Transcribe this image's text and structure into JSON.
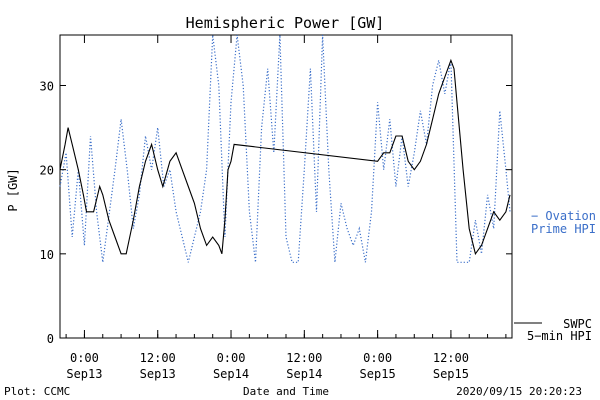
{
  "chart_data": {
    "type": "line",
    "title": "Hemispheric Power [GW]",
    "xlabel": "Date and Time",
    "ylabel": "P [GW]",
    "ylim": [
      0,
      36
    ],
    "xlim": [
      "2020-09-12 20:00",
      "2020-09-15 22:00"
    ],
    "yticks": [
      0,
      10,
      20,
      30
    ],
    "xticks": [
      {
        "t": "2020-09-13 00:00",
        "time": "0:00",
        "date": "Sep13"
      },
      {
        "t": "2020-09-13 12:00",
        "time": "12:00",
        "date": "Sep13"
      },
      {
        "t": "2020-09-14 00:00",
        "time": "0:00",
        "date": "Sep14"
      },
      {
        "t": "2020-09-14 12:00",
        "time": "12:00",
        "date": "Sep14"
      },
      {
        "t": "2020-09-15 00:00",
        "time": "0:00",
        "date": "Sep15"
      },
      {
        "t": "2020-09-15 12:00",
        "time": "12:00",
        "date": "Sep15"
      }
    ],
    "footer_left": "Plot: CCMC",
    "footer_right": "2020/09/15 20:20:23",
    "series": [
      {
        "name": "SWPC 5-min HPI",
        "legend_lines": [
          "SWPC",
          "5−min HPI"
        ],
        "color": "#000000",
        "style": "solid",
        "points": [
          [
            "2020-09-12 20:00",
            20
          ],
          [
            "2020-09-12 20:50",
            23
          ],
          [
            "2020-09-12 21:20",
            25
          ],
          [
            "2020-09-12 22:00",
            23
          ],
          [
            "2020-09-12 23:00",
            20
          ],
          [
            "2020-09-12 23:50",
            17
          ],
          [
            "2020-09-13 00:20",
            15
          ],
          [
            "2020-09-13 01:30",
            15
          ],
          [
            "2020-09-13 02:30",
            18
          ],
          [
            "2020-09-13 03:00",
            17
          ],
          [
            "2020-09-13 04:00",
            14
          ],
          [
            "2020-09-13 05:00",
            12
          ],
          [
            "2020-09-13 06:00",
            10
          ],
          [
            "2020-09-13 06:50",
            10
          ],
          [
            "2020-09-13 08:00",
            14
          ],
          [
            "2020-09-13 09:00",
            18
          ],
          [
            "2020-09-13 10:00",
            21
          ],
          [
            "2020-09-13 11:00",
            23
          ],
          [
            "2020-09-13 12:00",
            20
          ],
          [
            "2020-09-13 12:50",
            18
          ],
          [
            "2020-09-13 14:00",
            21
          ],
          [
            "2020-09-13 15:00",
            22
          ],
          [
            "2020-09-13 16:00",
            20
          ],
          [
            "2020-09-13 17:00",
            18
          ],
          [
            "2020-09-13 18:00",
            16
          ],
          [
            "2020-09-13 19:00",
            13
          ],
          [
            "2020-09-13 20:00",
            11
          ],
          [
            "2020-09-13 21:00",
            12
          ],
          [
            "2020-09-13 22:00",
            11
          ],
          [
            "2020-09-13 22:30",
            10
          ],
          [
            "2020-09-13 23:00",
            14
          ],
          [
            "2020-09-13 23:30",
            20
          ],
          [
            "2020-09-14 00:00",
            21
          ],
          [
            "2020-09-14 00:30",
            23
          ],
          [
            "2020-09-15 00:00",
            21
          ],
          [
            "2020-09-15 01:00",
            22
          ],
          [
            "2020-09-15 02:00",
            22
          ],
          [
            "2020-09-15 03:00",
            24
          ],
          [
            "2020-09-15 04:00",
            24
          ],
          [
            "2020-09-15 05:00",
            21
          ],
          [
            "2020-09-15 06:00",
            20
          ],
          [
            "2020-09-15 07:00",
            21
          ],
          [
            "2020-09-15 08:00",
            23
          ],
          [
            "2020-09-15 09:00",
            26
          ],
          [
            "2020-09-15 10:00",
            29
          ],
          [
            "2020-09-15 11:00",
            31
          ],
          [
            "2020-09-15 12:00",
            33
          ],
          [
            "2020-09-15 12:30",
            32
          ],
          [
            "2020-09-15 13:00",
            28
          ],
          [
            "2020-09-15 14:00",
            20
          ],
          [
            "2020-09-15 15:00",
            13
          ],
          [
            "2020-09-15 16:00",
            10
          ],
          [
            "2020-09-15 17:00",
            11
          ],
          [
            "2020-09-15 18:00",
            13
          ],
          [
            "2020-09-15 19:00",
            15
          ],
          [
            "2020-09-15 20:00",
            14
          ],
          [
            "2020-09-15 21:00",
            15
          ],
          [
            "2020-09-15 21:40",
            17
          ]
        ]
      },
      {
        "name": "Ovation Prime HPI",
        "legend_lines": [
          "− Ovation",
          "Prime HPI"
        ],
        "color": "#3b6fc9",
        "style": "dotted",
        "points": [
          [
            "2020-09-12 20:00",
            18
          ],
          [
            "2020-09-12 21:00",
            22
          ],
          [
            "2020-09-12 22:00",
            12
          ],
          [
            "2020-09-12 23:00",
            20
          ],
          [
            "2020-09-13 00:00",
            11
          ],
          [
            "2020-09-13 01:00",
            24
          ],
          [
            "2020-09-13 02:00",
            15
          ],
          [
            "2020-09-13 03:00",
            9
          ],
          [
            "2020-09-13 05:00",
            20
          ],
          [
            "2020-09-13 06:00",
            26
          ],
          [
            "2020-09-13 07:00",
            20
          ],
          [
            "2020-09-13 08:00",
            13
          ],
          [
            "2020-09-13 09:00",
            17
          ],
          [
            "2020-09-13 10:00",
            24
          ],
          [
            "2020-09-13 11:00",
            20
          ],
          [
            "2020-09-13 12:00",
            25
          ],
          [
            "2020-09-13 13:00",
            18
          ],
          [
            "2020-09-13 14:00",
            20
          ],
          [
            "2020-09-13 15:00",
            15
          ],
          [
            "2020-09-13 16:00",
            12
          ],
          [
            "2020-09-13 17:00",
            9
          ],
          [
            "2020-09-13 18:00",
            12
          ],
          [
            "2020-09-13 19:00",
            15
          ],
          [
            "2020-09-13 20:00",
            20
          ],
          [
            "2020-09-13 21:00",
            36
          ],
          [
            "2020-09-13 22:00",
            30
          ],
          [
            "2020-09-13 23:00",
            12
          ],
          [
            "2020-09-14 00:00",
            28
          ],
          [
            "2020-09-14 01:00",
            36
          ],
          [
            "2020-09-14 02:00",
            30
          ],
          [
            "2020-09-14 03:00",
            15
          ],
          [
            "2020-09-14 04:00",
            9
          ],
          [
            "2020-09-14 05:00",
            25
          ],
          [
            "2020-09-14 06:00",
            32
          ],
          [
            "2020-09-14 07:00",
            22
          ],
          [
            "2020-09-14 08:00",
            36
          ],
          [
            "2020-09-14 09:00",
            12
          ],
          [
            "2020-09-14 10:00",
            9
          ],
          [
            "2020-09-14 11:00",
            9
          ],
          [
            "2020-09-14 12:00",
            20
          ],
          [
            "2020-09-14 13:00",
            32
          ],
          [
            "2020-09-14 14:00",
            15
          ],
          [
            "2020-09-14 15:00",
            36
          ],
          [
            "2020-09-14 16:00",
            20
          ],
          [
            "2020-09-14 17:00",
            9
          ],
          [
            "2020-09-14 18:00",
            16
          ],
          [
            "2020-09-14 19:00",
            13
          ],
          [
            "2020-09-14 20:00",
            11
          ],
          [
            "2020-09-14 21:00",
            13
          ],
          [
            "2020-09-14 22:00",
            9
          ],
          [
            "2020-09-14 23:00",
            15
          ],
          [
            "2020-09-15 00:00",
            28
          ],
          [
            "2020-09-15 01:00",
            20
          ],
          [
            "2020-09-15 02:00",
            26
          ],
          [
            "2020-09-15 03:00",
            18
          ],
          [
            "2020-09-15 04:00",
            24
          ],
          [
            "2020-09-15 05:00",
            18
          ],
          [
            "2020-09-15 06:00",
            22
          ],
          [
            "2020-09-15 07:00",
            27
          ],
          [
            "2020-09-15 08:00",
            23
          ],
          [
            "2020-09-15 09:00",
            30
          ],
          [
            "2020-09-15 10:00",
            33
          ],
          [
            "2020-09-15 11:00",
            29
          ],
          [
            "2020-09-15 12:00",
            33
          ],
          [
            "2020-09-15 13:00",
            9
          ],
          [
            "2020-09-15 14:00",
            9
          ],
          [
            "2020-09-15 15:00",
            9
          ],
          [
            "2020-09-15 16:00",
            14
          ],
          [
            "2020-09-15 17:00",
            10
          ],
          [
            "2020-09-15 18:00",
            17
          ],
          [
            "2020-09-15 19:00",
            13
          ],
          [
            "2020-09-15 20:00",
            27
          ],
          [
            "2020-09-15 21:00",
            20
          ],
          [
            "2020-09-15 21:40",
            15
          ]
        ]
      }
    ]
  }
}
